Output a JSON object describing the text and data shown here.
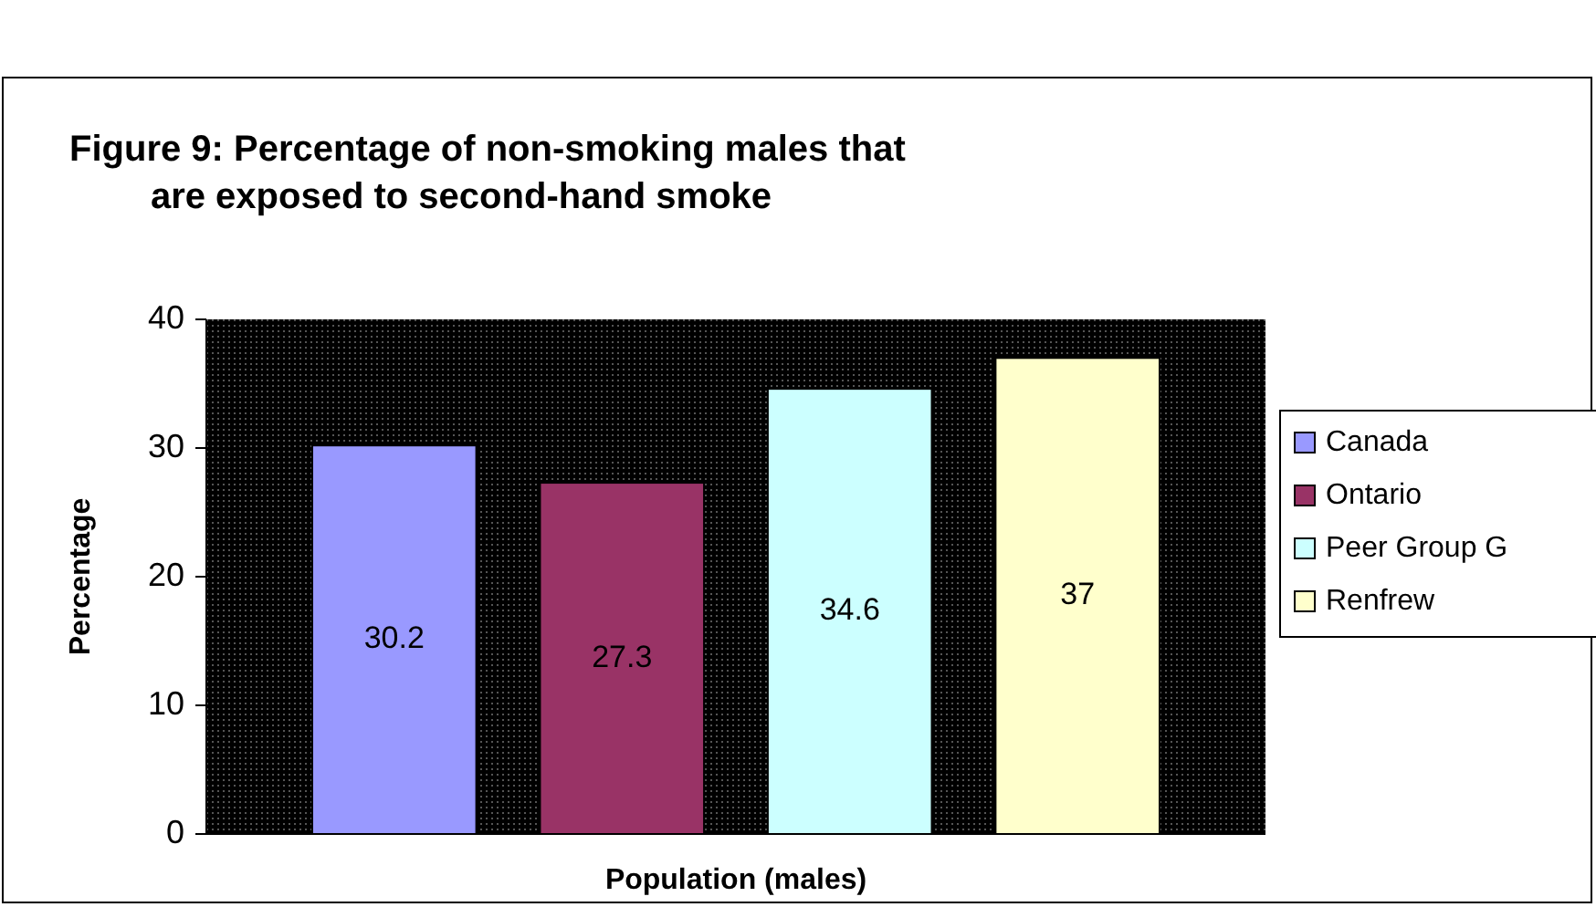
{
  "chart_data": {
    "type": "bar",
    "title": "Figure 9: Percentage of non-smoking males that\n        are exposed to second-hand smoke",
    "xlabel": "Population (males)",
    "ylabel": "Percentage",
    "categories": [
      null
    ],
    "series": [
      {
        "name": "Canada",
        "color": "#9999ff",
        "values": [
          30.2
        ]
      },
      {
        "name": "Ontario",
        "color": "#993366",
        "values": [
          27.3
        ]
      },
      {
        "name": "Peer Group G",
        "color": "#ccffff",
        "values": [
          34.6
        ]
      },
      {
        "name": "Renfrew",
        "color": "#ffffcc",
        "values": [
          37
        ]
      }
    ],
    "ylim": [
      0,
      40
    ],
    "yticks": [
      0,
      10,
      20,
      30,
      40
    ],
    "data_labels": true,
    "legend": "right"
  }
}
